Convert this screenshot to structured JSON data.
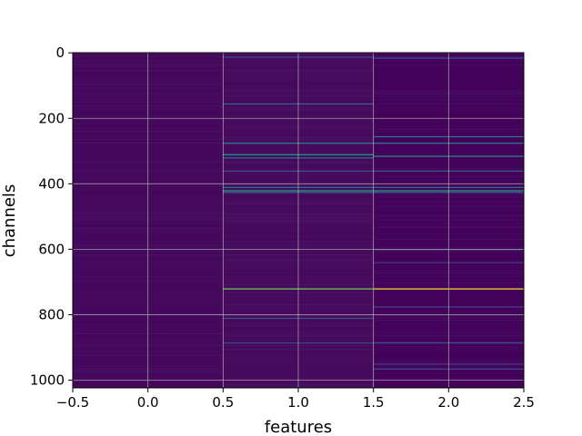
{
  "chart_data": {
    "type": "heatmap",
    "xlabel": "features",
    "ylabel": "channels",
    "x_ticks": [
      "−0.5",
      "0.0",
      "0.5",
      "1.0",
      "1.5",
      "2.0",
      "2.5"
    ],
    "x_tick_values": [
      -0.5,
      0.0,
      0.5,
      1.0,
      1.5,
      2.0,
      2.5
    ],
    "y_ticks": [
      "0",
      "200",
      "400",
      "600",
      "800",
      "1000"
    ],
    "y_tick_values": [
      0,
      200,
      400,
      600,
      800,
      1000
    ],
    "xlim": [
      -0.5,
      2.5
    ],
    "ylim": [
      1023.5,
      -0.5
    ],
    "grid": true,
    "colormap": "viridis",
    "columns": [
      {
        "feature": 0,
        "base_color": "#46085c"
      },
      {
        "feature": 1,
        "base_color": "#470b5e"
      },
      {
        "feature": 2,
        "base_color": "#44025a"
      }
    ],
    "highlighted_rows": [
      {
        "channel": 12,
        "feature": 1,
        "color": "#3f4a89"
      },
      {
        "channel": 15,
        "feature": 2,
        "color": "#3b528b"
      },
      {
        "channel": 155,
        "feature": 1,
        "color": "#31688e"
      },
      {
        "channel": 255,
        "feature": 2,
        "color": "#2c738e"
      },
      {
        "channel": 275,
        "feature": 1,
        "color": "#26828e"
      },
      {
        "channel": 275,
        "feature": 2,
        "color": "#26828e"
      },
      {
        "channel": 310,
        "feature": 1,
        "color": "#1f9e89"
      },
      {
        "channel": 315,
        "feature": 2,
        "color": "#21918c"
      },
      {
        "channel": 320,
        "feature": 1,
        "color": "#2a788e"
      },
      {
        "channel": 360,
        "feature": 1,
        "color": "#38588c"
      },
      {
        "channel": 360,
        "feature": 2,
        "color": "#355f8d"
      },
      {
        "channel": 410,
        "feature": 1,
        "color": "#2a788e"
      },
      {
        "channel": 410,
        "feature": 2,
        "color": "#2c738e"
      },
      {
        "channel": 420,
        "feature": 1,
        "color": "#22a884"
      },
      {
        "channel": 420,
        "feature": 2,
        "color": "#1fa187"
      },
      {
        "channel": 425,
        "feature": 1,
        "color": "#2f6c8e"
      },
      {
        "channel": 425,
        "feature": 2,
        "color": "#2f6c8e"
      },
      {
        "channel": 600,
        "feature": 2,
        "color": "#3e4c8a"
      },
      {
        "channel": 640,
        "feature": 2,
        "color": "#433e85"
      },
      {
        "channel": 720,
        "feature": 1,
        "color": "#7ad151"
      },
      {
        "channel": 720,
        "feature": 2,
        "color": "#fde725"
      },
      {
        "channel": 775,
        "feature": 2,
        "color": "#414487"
      },
      {
        "channel": 810,
        "feature": 1,
        "color": "#3b528b"
      },
      {
        "channel": 885,
        "feature": 1,
        "color": "#3e4a89"
      },
      {
        "channel": 885,
        "feature": 2,
        "color": "#3b528b"
      },
      {
        "channel": 950,
        "feature": 2,
        "color": "#433e85"
      },
      {
        "channel": 965,
        "feature": 2,
        "color": "#3e4a89"
      }
    ]
  }
}
